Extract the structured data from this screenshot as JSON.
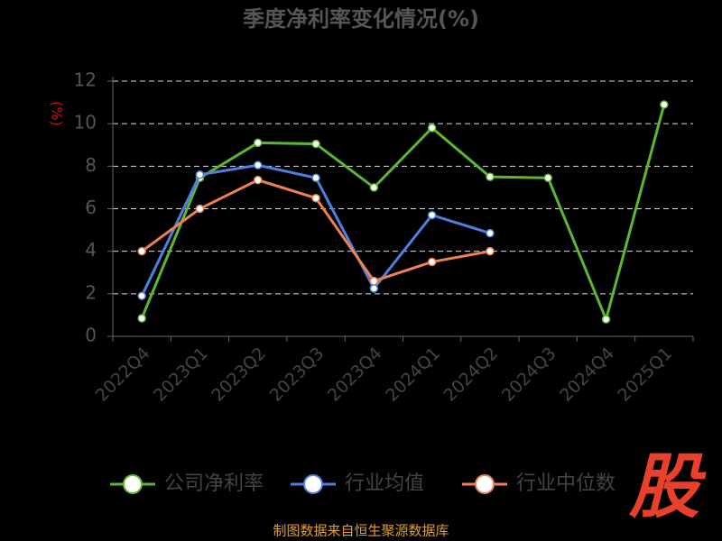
{
  "chart_data": {
    "type": "line",
    "title": "季度净利率变化情况(%)",
    "y_label": "(%)",
    "categories": [
      "2022Q4",
      "2023Q1",
      "2023Q2",
      "2023Q3",
      "2023Q4",
      "2024Q1",
      "2024Q2",
      "2024Q3",
      "2024Q4",
      "2025Q1"
    ],
    "series": [
      {
        "name": "公司净利率",
        "color": "#5cb82e",
        "values": [
          0.85,
          7.45,
          9.1,
          9.05,
          7.0,
          9.8,
          7.5,
          7.45,
          0.8,
          10.9
        ]
      },
      {
        "name": "行业均值",
        "color": "#4f7fe0",
        "values": [
          1.9,
          7.6,
          8.05,
          7.45,
          2.25,
          5.7,
          4.85,
          null,
          null,
          null
        ]
      },
      {
        "name": "行业中位数",
        "color": "#f08050",
        "values": [
          4.0,
          6.0,
          7.35,
          6.5,
          2.6,
          3.5,
          4.0,
          null,
          null,
          null
        ]
      }
    ],
    "ylim": [
      0,
      12
    ],
    "yticks": [
      0,
      2,
      4,
      6,
      8,
      10,
      12
    ],
    "grid": true,
    "source": "制图数据来自恒生聚源数据库",
    "logo": "股"
  }
}
